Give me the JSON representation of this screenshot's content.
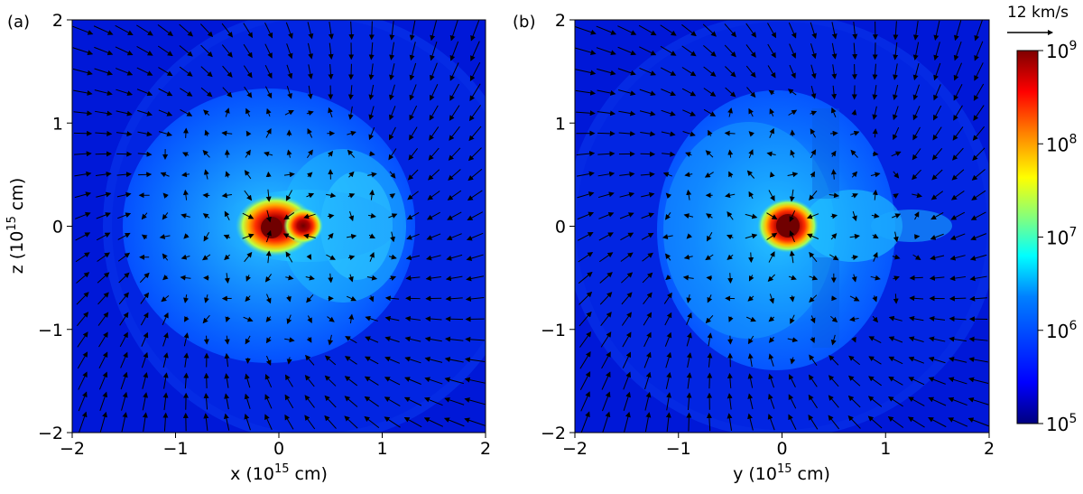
{
  "chart_data": [
    {
      "type": "heatmap",
      "panel_label": "(a)",
      "xlabel": "x (10",
      "xlabel_exp": "15",
      "xlabel_unit": " cm)",
      "ylabel": "z (10",
      "ylabel_exp": "15",
      "ylabel_unit": " cm)",
      "xlim": [
        -2,
        2
      ],
      "ylim": [
        -2,
        2
      ],
      "xticks": [
        "−2",
        "−1",
        "0",
        "1",
        "2"
      ],
      "yticks": [
        "−2",
        "−1",
        "0",
        "1",
        "2"
      ],
      "scale": "log",
      "overlay": "velocity vectors",
      "features": {
        "envelope_center": [
          0.0,
          0.0
        ],
        "envelope_radius_x": 1.45,
        "envelope_radius_z": 1.3,
        "core_position": [
          -0.05,
          -0.05
        ],
        "companion_position": [
          0.25,
          0.0
        ],
        "outer_shell_radius": 2.1,
        "outer_shell_center_x": 0.35
      }
    },
    {
      "type": "heatmap",
      "panel_label": "(b)",
      "xlabel": "y (10",
      "xlabel_exp": "15",
      "xlabel_unit": " cm)",
      "ylabel": "",
      "xlim": [
        -2,
        2
      ],
      "ylim": [
        -2,
        2
      ],
      "xticks": [
        "−2",
        "−1",
        "0",
        "1",
        "2"
      ],
      "yticks": [
        "−2",
        "−1",
        "0",
        "1",
        "2"
      ],
      "scale": "log",
      "overlay": "velocity vectors",
      "features": {
        "envelope_center": [
          0.0,
          0.0
        ],
        "envelope_radius_x": 1.15,
        "envelope_radius_z": 1.35,
        "core_position": [
          0.05,
          0.0
        ],
        "outer_shell_radius": 1.9
      }
    }
  ],
  "colorbar": {
    "colormap": "jet",
    "ticks": [
      {
        "base": "10",
        "exp": "9"
      },
      {
        "base": "10",
        "exp": "8"
      },
      {
        "base": "10",
        "exp": "7"
      },
      {
        "base": "10",
        "exp": "6"
      },
      {
        "base": "10",
        "exp": "5"
      }
    ],
    "range_log": [
      5,
      9
    ]
  },
  "velocity_key": {
    "label": "12 km/s"
  },
  "colors": {
    "background_low": "#00007f",
    "envelope": "#0037ff",
    "mid": "#00bfff",
    "core": "#ff2000",
    "core_dark": "#800000",
    "arrow": "#000000"
  }
}
